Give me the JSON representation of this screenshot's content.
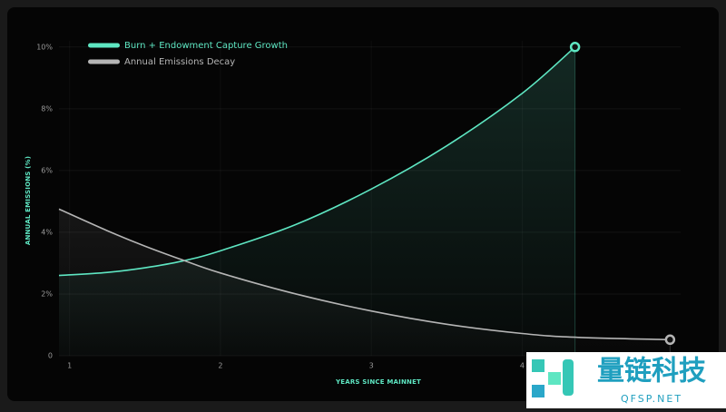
{
  "chart_data": {
    "type": "line",
    "x_label": "YEARS SINCE MAINNET",
    "y_label": "ANNUAL EMISSIONS (%)",
    "x": [
      0.93,
      1.25,
      1.5,
      1.75,
      2,
      2.5,
      3,
      3.5,
      4,
      4.35,
      4.98
    ],
    "series": [
      {
        "name": "Burn + Endowment Capture Growth",
        "color": "#5ee6c2",
        "values": [
          2.6,
          2.7,
          2.85,
          3.07,
          3.4,
          4.25,
          5.4,
          6.8,
          8.5,
          10,
          null
        ]
      },
      {
        "name": "Annual Emissions Decay",
        "color": "#b5b5b5",
        "values": [
          4.75,
          4.05,
          3.55,
          3.1,
          2.68,
          2.0,
          1.45,
          1.02,
          0.72,
          0.6,
          0.52
        ]
      }
    ],
    "xlim": [
      0.93,
      5.05
    ],
    "ylim": [
      0,
      10.2
    ],
    "xticks": [
      1,
      2,
      3,
      4
    ],
    "yticks": [
      0,
      {
        "value": 2,
        "label": "2%"
      },
      {
        "value": 4,
        "label": "4%"
      },
      {
        "value": 6,
        "label": "6%"
      },
      {
        "value": 8,
        "label": "8%"
      },
      {
        "value": 10,
        "label": "10%"
      }
    ],
    "grid": true,
    "legend": "top-left"
  },
  "watermark": {
    "title": "量链科技",
    "subtitle": "QFSP.NET"
  }
}
